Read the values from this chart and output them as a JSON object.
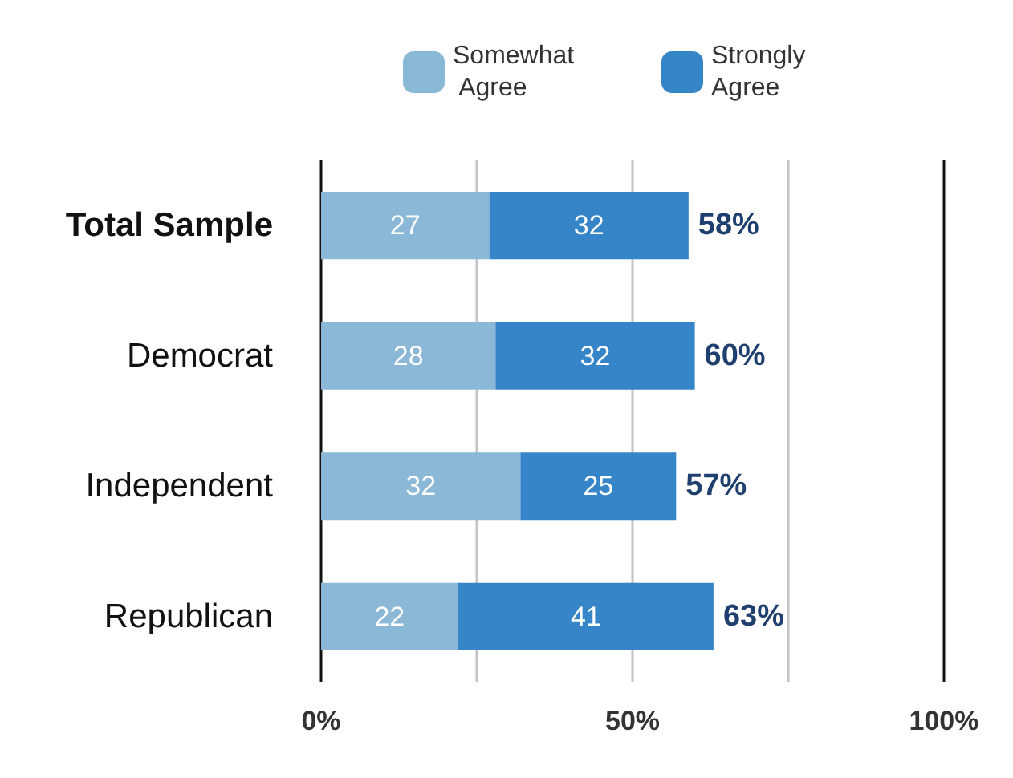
{
  "chart_data": {
    "type": "bar",
    "orientation": "horizontal",
    "stacked": true,
    "categories": [
      "Total Sample",
      "Democrat",
      "Independent",
      "Republican"
    ],
    "series": [
      {
        "name": "Somewhat Agree",
        "color": "#8ab8d6",
        "values": [
          27,
          28,
          32,
          22
        ]
      },
      {
        "name": "Strongly Agree",
        "color": "#3585c8",
        "values": [
          32,
          32,
          25,
          41
        ]
      }
    ],
    "totals": [
      "58%",
      "60%",
      "57%",
      "63%"
    ],
    "data_labels": true,
    "xlim": [
      0,
      100
    ],
    "xticks": [
      {
        "value": 0,
        "label": "0%"
      },
      {
        "value": 25,
        "label": null
      },
      {
        "value": 50,
        "label": "50%"
      },
      {
        "value": 75,
        "label": null
      },
      {
        "value": 100,
        "label": "100%"
      }
    ],
    "grid": "x",
    "legend": "top"
  }
}
